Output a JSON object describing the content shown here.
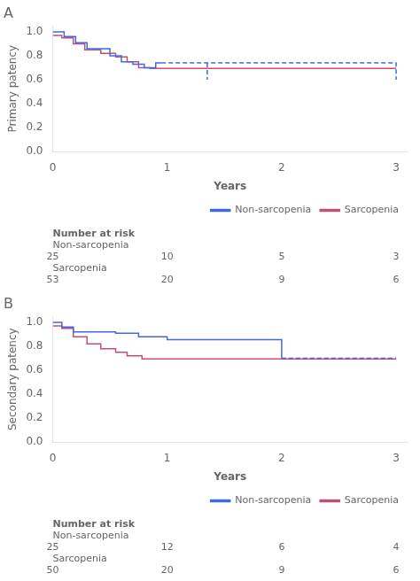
{
  "chart_data": [
    {
      "type": "step",
      "title": "A",
      "xlabel": "Years",
      "ylabel": "Primary patency",
      "xlim": [
        0,
        3.1
      ],
      "xticks": [
        0,
        1,
        2,
        3
      ],
      "ylim": [
        0.0,
        1.05
      ],
      "yticks": [
        {
          "value": 0.0,
          "label": "0.0"
        },
        0.2,
        0.4,
        0.6,
        0.8,
        {
          "value": 1.0,
          "label": "1.0"
        }
      ],
      "grid": false,
      "legend": "lower right",
      "series": [
        {
          "name": "Non-sarcopenia",
          "color": "#4169e1",
          "line_style": "solid",
          "x": [
            0,
            0.1,
            0.2,
            0.3,
            0.5,
            0.6,
            0.7,
            0.8,
            0.9,
            0.95
          ],
          "values": [
            1.0,
            0.96,
            0.91,
            0.86,
            0.8,
            0.75,
            0.73,
            0.7,
            0.74,
            0.74
          ]
        },
        {
          "name": "Non-sarcopenia",
          "color": "#4169e1",
          "line_style": "dashed",
          "x": [
            0.95,
            1.35,
            3.0
          ],
          "values": [
            0.74,
            0.74,
            0.6
          ]
        },
        {
          "name": "Non-sarcopenia",
          "color": "#4169e1",
          "line_style": "dashed",
          "type": "line",
          "x": [
            1.35,
            1.35
          ],
          "values": [
            0.74,
            0.6
          ]
        },
        {
          "name": "Sarcopenia",
          "color": "#c0507a",
          "line_style": "solid",
          "x": [
            0,
            0.08,
            0.18,
            0.28,
            0.42,
            0.55,
            0.65,
            0.75,
            0.85,
            0.95,
            3.0
          ],
          "values": [
            0.97,
            0.95,
            0.9,
            0.85,
            0.82,
            0.79,
            0.75,
            0.7,
            0.695,
            0.695,
            0.695
          ]
        }
      ],
      "at_risk": {
        "title": "Number at risk",
        "times": [
          0,
          1,
          2,
          3
        ],
        "rows": [
          {
            "name": "Non-sarcopenia",
            "values": [
              25,
              10,
              5,
              3
            ]
          },
          {
            "name": "Sarcopenia",
            "values": [
              53,
              20,
              9,
              6
            ]
          }
        ]
      }
    },
    {
      "type": "step",
      "title": "B",
      "xlabel": "Years",
      "ylabel": "Secondary patency",
      "xlim": [
        0,
        3.1
      ],
      "xticks": [
        0,
        1,
        2,
        3
      ],
      "ylim": [
        0.0,
        1.05
      ],
      "yticks": [
        {
          "value": 0.0,
          "label": "0.0"
        },
        0.2,
        0.4,
        0.6,
        0.8,
        {
          "value": 1.0,
          "label": "1.0"
        }
      ],
      "grid": false,
      "legend": "lower right",
      "series": [
        {
          "name": "Non-sarcopenia",
          "color": "#4169e1",
          "line_style": "solid",
          "x": [
            0,
            0.08,
            0.18,
            0.55,
            0.75,
            1.0,
            2.0
          ],
          "values": [
            1.0,
            0.96,
            0.92,
            0.91,
            0.88,
            0.855,
            0.7
          ]
        },
        {
          "name": "Non-sarcopenia",
          "color": "#4169e1",
          "line_style": "dashed",
          "x": [
            2.0,
            3.0
          ],
          "values": [
            0.7,
            0.7
          ]
        },
        {
          "name": "Sarcopenia",
          "color": "#c0507a",
          "line_style": "solid",
          "x": [
            0,
            0.08,
            0.18,
            0.3,
            0.42,
            0.55,
            0.65,
            0.78,
            0.88,
            3.0
          ],
          "values": [
            0.97,
            0.95,
            0.88,
            0.82,
            0.78,
            0.75,
            0.72,
            0.695,
            0.695,
            0.695
          ]
        }
      ],
      "at_risk": {
        "title": "Number at risk",
        "times": [
          0,
          1,
          2,
          3
        ],
        "rows": [
          {
            "name": "Non-sarcopenia",
            "values": [
              25,
              12,
              6,
              4
            ]
          },
          {
            "name": "Sarcopenia",
            "values": [
              50,
              20,
              9,
              6
            ]
          }
        ]
      }
    }
  ]
}
